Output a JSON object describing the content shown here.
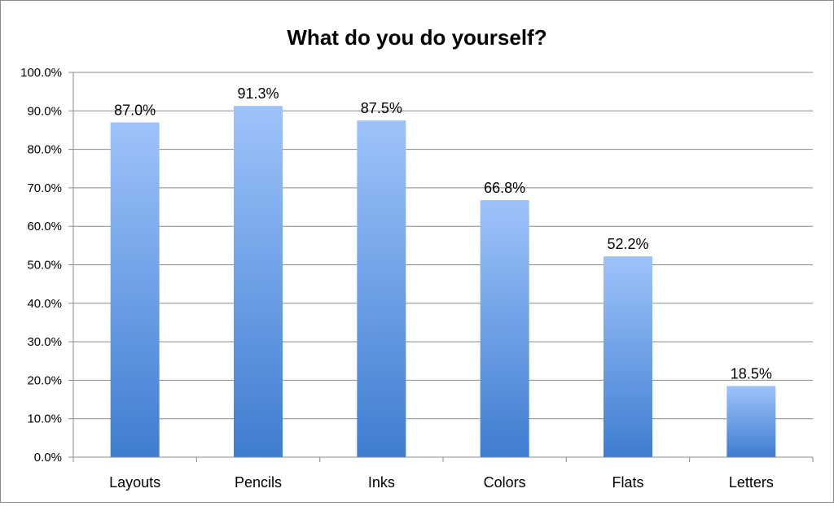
{
  "chart_data": {
    "type": "bar",
    "title": "What do you do yourself?",
    "categories": [
      "Layouts",
      "Pencils",
      "Inks",
      "Colors",
      "Flats",
      "Letters"
    ],
    "values": [
      87.0,
      91.3,
      87.5,
      66.8,
      52.2,
      18.5
    ],
    "data_labels": [
      "87.0%",
      "91.3%",
      "87.5%",
      "66.8%",
      "52.2%",
      "18.5%"
    ],
    "y_ticks": [
      0,
      10,
      20,
      30,
      40,
      50,
      60,
      70,
      80,
      90,
      100
    ],
    "y_tick_labels": [
      "0.0%",
      "10.0%",
      "20.0%",
      "30.0%",
      "40.0%",
      "50.0%",
      "60.0%",
      "70.0%",
      "80.0%",
      "90.0%",
      "100.0%"
    ],
    "xlabel": "",
    "ylabel": "",
    "ylim": [
      0,
      100
    ],
    "grid": true,
    "legend": "none",
    "colors": {
      "bar_top": "#9ec3fb",
      "bar_bottom": "#3f7dd0",
      "grid": "#8a8a8a",
      "axis": "#8a8a8a"
    }
  }
}
